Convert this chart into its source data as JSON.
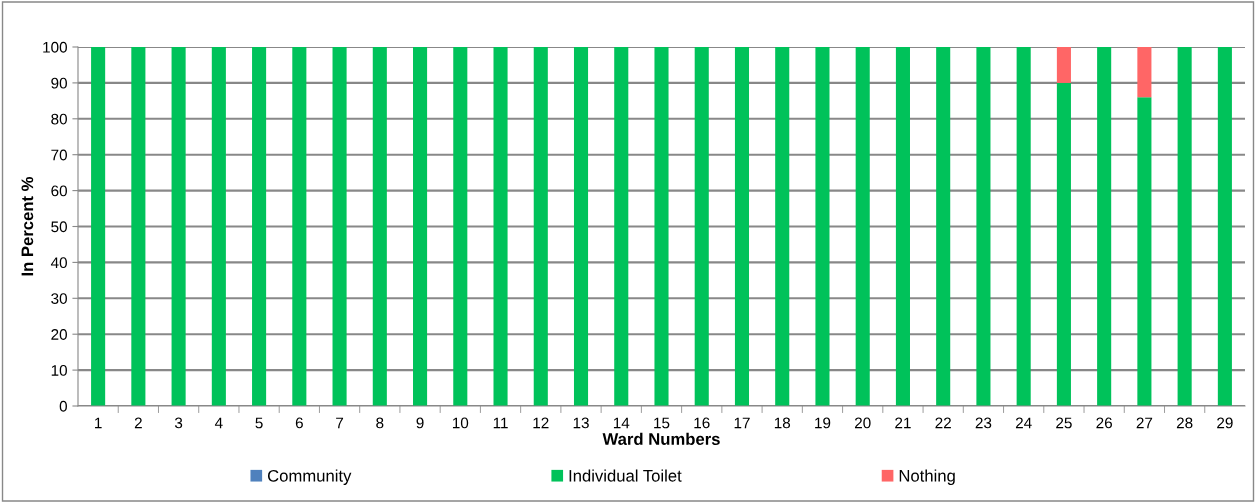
{
  "chart_data": {
    "type": "bar",
    "stacked": true,
    "xlabel": "Ward Numbers",
    "ylabel": "In Percent %",
    "categories": [
      "1",
      "2",
      "3",
      "4",
      "5",
      "6",
      "7",
      "8",
      "9",
      "10",
      "11",
      "12",
      "13",
      "14",
      "15",
      "16",
      "17",
      "18",
      "19",
      "20",
      "21",
      "22",
      "23",
      "24",
      "25",
      "26",
      "27",
      "28",
      "29"
    ],
    "series": [
      {
        "name": "Community",
        "color": "#4f81bd",
        "values": [
          0,
          0,
          0,
          0,
          0,
          0,
          0,
          0,
          0,
          0,
          0,
          0,
          0,
          0,
          0,
          0,
          0,
          0,
          0,
          0,
          0,
          0,
          0,
          0,
          0,
          0,
          0,
          0,
          0
        ]
      },
      {
        "name": "Individual Toilet",
        "color": "#00c25a",
        "values": [
          100,
          100,
          100,
          100,
          100,
          100,
          100,
          100,
          100,
          100,
          100,
          100,
          100,
          100,
          100,
          100,
          100,
          100,
          100,
          100,
          100,
          100,
          100,
          100,
          90,
          100,
          86,
          100,
          100
        ]
      },
      {
        "name": "Nothing",
        "color": "#ff6666",
        "values": [
          0,
          0,
          0,
          0,
          0,
          0,
          0,
          0,
          0,
          0,
          0,
          0,
          0,
          0,
          0,
          0,
          0,
          0,
          0,
          0,
          0,
          0,
          0,
          0,
          10,
          0,
          14,
          0,
          0
        ]
      }
    ],
    "ylim": [
      0,
      100
    ],
    "yticks": [
      0,
      10,
      20,
      30,
      40,
      50,
      60,
      70,
      80,
      90,
      100
    ],
    "grid": "y",
    "legend": "bottom"
  }
}
